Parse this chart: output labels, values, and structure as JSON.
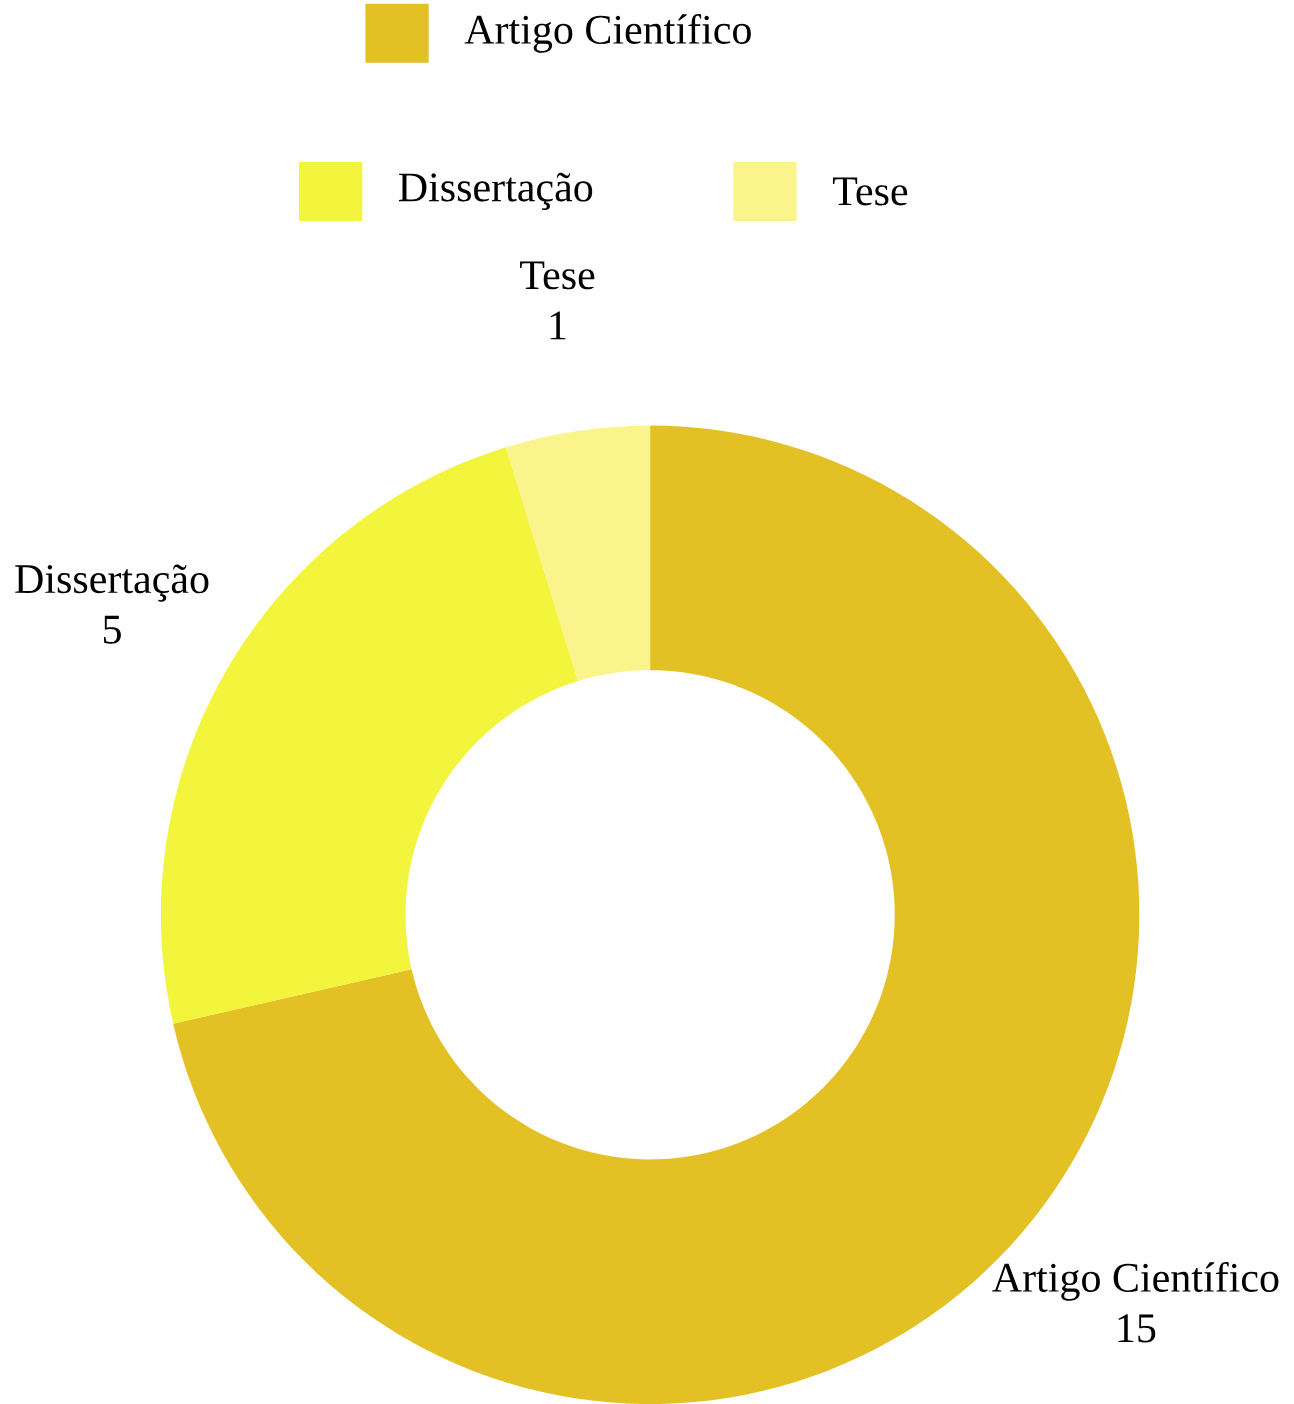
{
  "chart_data": {
    "type": "donut",
    "categories": [
      "Artigo Científico",
      "Dissertação",
      "Tese"
    ],
    "values": [
      15,
      5,
      1
    ],
    "colors": [
      "#e3c125",
      "#f2f53c",
      "#fbf48c"
    ],
    "data_labels": true,
    "legend": "top"
  }
}
